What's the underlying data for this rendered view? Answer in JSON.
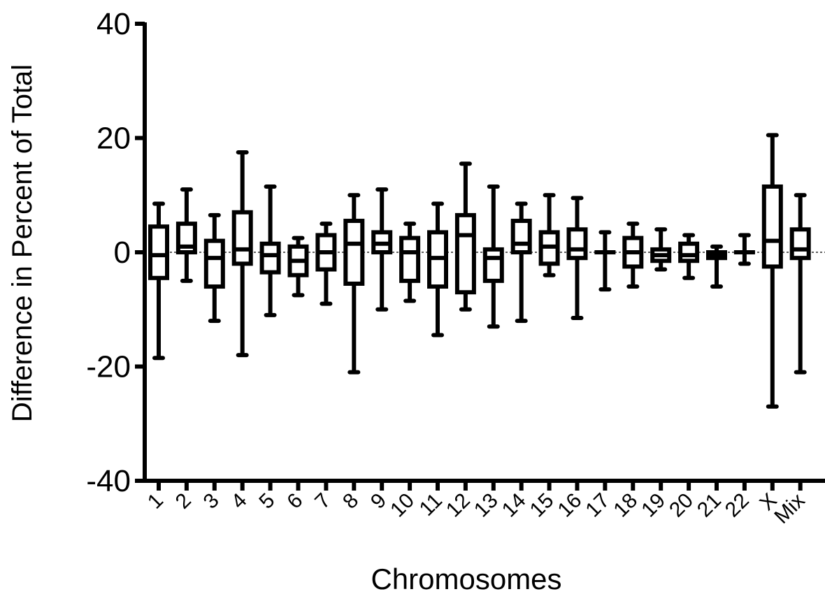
{
  "chart_data": {
    "type": "box",
    "title": "",
    "xlabel": "Chromosomes",
    "ylabel": "Difference in Percent of Total",
    "ylim": [
      -40,
      40
    ],
    "yticks": [
      40,
      20,
      0,
      -20,
      -40
    ],
    "ytick_labels": [
      "40",
      "20",
      "0",
      "-20",
      "-40"
    ],
    "reference_line": 0,
    "categories": [
      "1",
      "2",
      "3",
      "4",
      "5",
      "6",
      "7",
      "8",
      "9",
      "10",
      "11",
      "12",
      "13",
      "14",
      "15",
      "16",
      "17",
      "18",
      "19",
      "20",
      "21",
      "22",
      "X",
      "Mix"
    ],
    "boxes": [
      {
        "min": -18.5,
        "q1": -4.5,
        "median": -0.5,
        "q3": 4.5,
        "max": 8.5
      },
      {
        "min": -5,
        "q1": 0,
        "median": 1,
        "q3": 5,
        "max": 11
      },
      {
        "min": -12,
        "q1": -6,
        "median": -1,
        "q3": 2,
        "max": 6.5
      },
      {
        "min": -18,
        "q1": -2,
        "median": 0.5,
        "q3": 7,
        "max": 17.5
      },
      {
        "min": -11,
        "q1": -3.5,
        "median": -0.5,
        "q3": 1.5,
        "max": 11.5
      },
      {
        "min": -7.5,
        "q1": -4,
        "median": -1.5,
        "q3": 1,
        "max": 2.5
      },
      {
        "min": -9,
        "q1": -3,
        "median": 0,
        "q3": 3,
        "max": 5
      },
      {
        "min": -21,
        "q1": -5.5,
        "median": 1.5,
        "q3": 5.5,
        "max": 10
      },
      {
        "min": -10,
        "q1": 0,
        "median": 1.5,
        "q3": 3.5,
        "max": 11
      },
      {
        "min": -8.5,
        "q1": -5,
        "median": 0,
        "q3": 2.5,
        "max": 5
      },
      {
        "min": -14.5,
        "q1": -6,
        "median": -1,
        "q3": 3.5,
        "max": 8.5
      },
      {
        "min": -10,
        "q1": -7,
        "median": 3,
        "q3": 6.5,
        "max": 15.5
      },
      {
        "min": -13,
        "q1": -5,
        "median": -1,
        "q3": 0.5,
        "max": 11.5
      },
      {
        "min": -12,
        "q1": 0,
        "median": 1.5,
        "q3": 5.5,
        "max": 8.5
      },
      {
        "min": -4,
        "q1": -2,
        "median": 1,
        "q3": 3.5,
        "max": 10
      },
      {
        "min": -11.5,
        "q1": -1,
        "median": 0.5,
        "q3": 4,
        "max": 9.5
      },
      {
        "min": -6.5,
        "q1": 0,
        "median": 0,
        "q3": 0,
        "max": 3.5
      },
      {
        "min": -6,
        "q1": -2.5,
        "median": 0,
        "q3": 2.5,
        "max": 5
      },
      {
        "min": -3,
        "q1": -1.5,
        "median": -0.5,
        "q3": 0.5,
        "max": 4
      },
      {
        "min": -4.5,
        "q1": -1.5,
        "median": -0.5,
        "q3": 1.5,
        "max": 3
      },
      {
        "min": -6,
        "q1": -1,
        "median": -0.5,
        "q3": 0,
        "max": 1
      },
      {
        "min": -2,
        "q1": 0,
        "median": 0,
        "q3": 0,
        "max": 3
      },
      {
        "min": -27,
        "q1": -2.5,
        "median": 2,
        "q3": 11.5,
        "max": 20.5
      },
      {
        "min": -21,
        "q1": -1,
        "median": 0.5,
        "q3": 4,
        "max": 10
      }
    ]
  }
}
